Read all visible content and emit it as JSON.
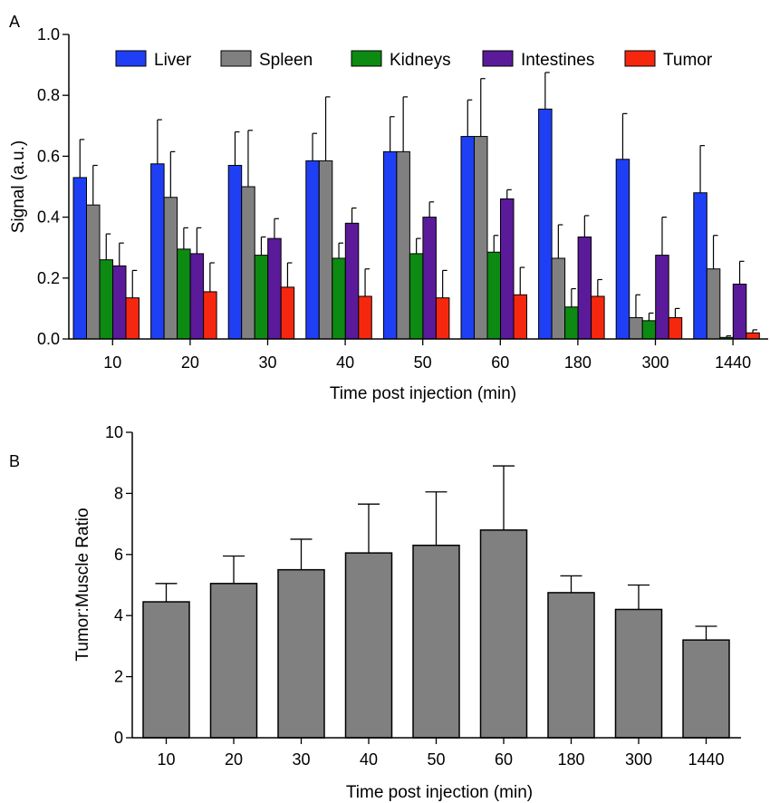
{
  "chart_data": [
    {
      "panel_label": "A",
      "type": "bar",
      "xlabel": "Time post injection (min)",
      "ylabel": "Signal (a.u.)",
      "ylim": [
        0,
        1.0
      ],
      "yticks": [
        "0.0",
        "0.2",
        "0.4",
        "0.6",
        "0.8",
        "1.0"
      ],
      "categories": [
        "10",
        "20",
        "30",
        "40",
        "50",
        "60",
        "180",
        "300",
        "1440"
      ],
      "legend_position": "top",
      "series": [
        {
          "name": "Liver",
          "color": "#1f3ff5",
          "values": [
            0.53,
            0.575,
            0.57,
            0.585,
            0.615,
            0.665,
            0.755,
            0.59,
            0.48
          ],
          "errors": [
            0.125,
            0.145,
            0.11,
            0.09,
            0.115,
            0.12,
            0.12,
            0.15,
            0.155
          ]
        },
        {
          "name": "Spleen",
          "color": "#808080",
          "values": [
            0.44,
            0.465,
            0.5,
            0.585,
            0.615,
            0.665,
            0.265,
            0.07,
            0.23
          ],
          "errors": [
            0.13,
            0.15,
            0.185,
            0.21,
            0.18,
            0.19,
            0.11,
            0.075,
            0.11
          ]
        },
        {
          "name": "Kidneys",
          "color": "#0d8a12",
          "values": [
            0.26,
            0.295,
            0.275,
            0.265,
            0.28,
            0.285,
            0.105,
            0.06,
            0.005
          ],
          "errors": [
            0.085,
            0.07,
            0.06,
            0.05,
            0.05,
            0.055,
            0.06,
            0.025,
            0.005
          ]
        },
        {
          "name": "Intestines",
          "color": "#5b1a9a",
          "values": [
            0.24,
            0.28,
            0.33,
            0.38,
            0.4,
            0.46,
            0.335,
            0.275,
            0.18
          ],
          "errors": [
            0.075,
            0.085,
            0.065,
            0.05,
            0.05,
            0.03,
            0.07,
            0.125,
            0.075
          ]
        },
        {
          "name": "Tumor",
          "color": "#f5280f",
          "values": [
            0.135,
            0.155,
            0.17,
            0.14,
            0.135,
            0.145,
            0.14,
            0.07,
            0.02
          ],
          "errors": [
            0.09,
            0.095,
            0.08,
            0.09,
            0.09,
            0.09,
            0.055,
            0.03,
            0.01
          ]
        }
      ]
    },
    {
      "panel_label": "B",
      "type": "bar",
      "xlabel": "Time post injection (min)",
      "ylabel": "Tumor:Muscle Ratio",
      "ylim": [
        0,
        10
      ],
      "yticks": [
        "0",
        "2",
        "4",
        "6",
        "8",
        "10"
      ],
      "categories": [
        "10",
        "20",
        "30",
        "40",
        "50",
        "60",
        "180",
        "300",
        "1440"
      ],
      "series": [
        {
          "color": "#808080",
          "values": [
            4.45,
            5.05,
            5.5,
            6.05,
            6.3,
            6.8,
            4.75,
            4.2,
            3.2
          ],
          "errors": [
            0.6,
            0.9,
            1.0,
            1.6,
            1.75,
            2.1,
            0.55,
            0.8,
            0.45
          ]
        }
      ]
    }
  ]
}
